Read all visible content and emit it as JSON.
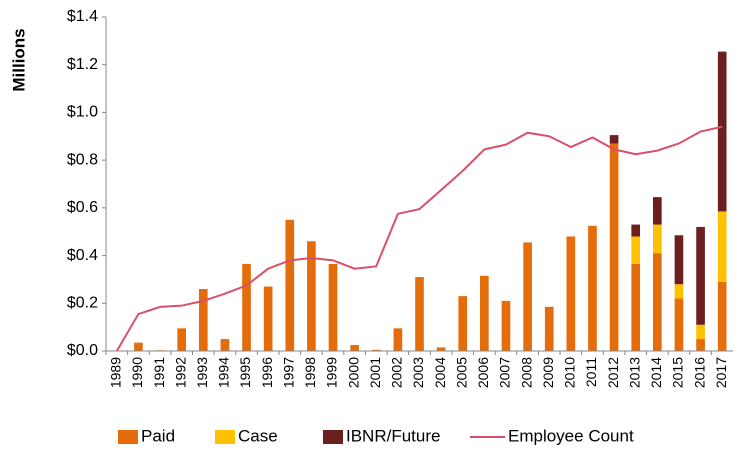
{
  "chart_data": {
    "type": "bar",
    "stacked": true,
    "y_label": "Millions",
    "categories": [
      "1989",
      "1990",
      "1991",
      "1992",
      "1993",
      "1994",
      "1995",
      "1996",
      "1997",
      "1998",
      "1999",
      "2000",
      "2001",
      "2002",
      "2003",
      "2004",
      "2005",
      "2006",
      "2007",
      "2008",
      "2009",
      "2010",
      "2011",
      "2012",
      "2013",
      "2014",
      "2015",
      "2016",
      "2017"
    ],
    "series": [
      {
        "name": "Paid",
        "color": "#e46c0a",
        "values": [
          0,
          0.035,
          0.003,
          0.095,
          0.26,
          0.05,
          0.365,
          0.27,
          0.55,
          0.46,
          0.365,
          0.025,
          0.005,
          0.095,
          0.31,
          0.015,
          0.23,
          0.315,
          0.21,
          0.455,
          0.185,
          0.48,
          0.525,
          0.87,
          0.365,
          0.41,
          0.22,
          0.05,
          0.29
        ]
      },
      {
        "name": "Case",
        "color": "#ffc000",
        "values": [
          0,
          0,
          0,
          0,
          0,
          0,
          0,
          0,
          0,
          0,
          0,
          0,
          0,
          0,
          0,
          0,
          0,
          0,
          0,
          0,
          0,
          0,
          0,
          0,
          0.115,
          0.12,
          0.06,
          0.06,
          0.295
        ]
      },
      {
        "name": "IBNR/Future",
        "color": "#6b1f1f",
        "values": [
          0,
          0,
          0,
          0,
          0,
          0,
          0,
          0,
          0,
          0,
          0,
          0,
          0,
          0,
          0,
          0,
          0,
          0,
          0,
          0,
          0,
          0,
          0,
          0.035,
          0.05,
          0.115,
          0.205,
          0.41,
          0.67
        ]
      },
      {
        "name": "Employee Count",
        "type": "line",
        "color": "#d9506a",
        "values": [
          0,
          0.155,
          0.185,
          0.19,
          0.21,
          0.24,
          0.275,
          0.345,
          0.38,
          0.39,
          0.38,
          0.345,
          0.355,
          0.575,
          0.595,
          0.675,
          0.755,
          0.845,
          0.865,
          0.915,
          0.9,
          0.855,
          0.895,
          0.845,
          0.825,
          0.84,
          0.87,
          0.92,
          0.94
        ]
      }
    ],
    "ylim": [
      0,
      1.4
    ],
    "yticks": [
      {
        "value": 0,
        "label": "$0.0"
      },
      {
        "value": 0.2,
        "label": "$0.2"
      },
      {
        "value": 0.4,
        "label": "$0.4"
      },
      {
        "value": 0.6,
        "label": "$0.6"
      },
      {
        "value": 0.8,
        "label": "$0.8"
      },
      {
        "value": 1.0,
        "label": "$1.0"
      },
      {
        "value": 1.2,
        "label": "$1.2"
      },
      {
        "value": 1.4,
        "label": "$1.4"
      }
    ],
    "grid": false,
    "legend": "bottom"
  }
}
